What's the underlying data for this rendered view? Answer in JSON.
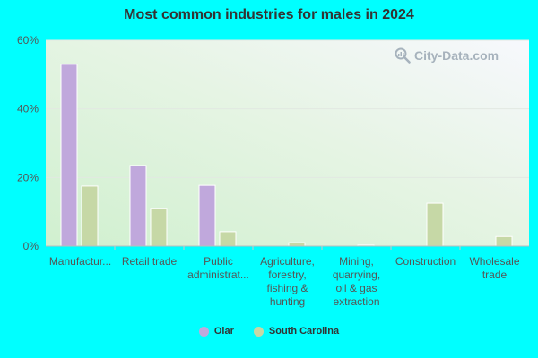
{
  "colors": {
    "series0": "#c0a8dc",
    "series1": "#c6d8a6"
  },
  "watermark": {
    "text": "City-Data.com",
    "icon": "magnifier-chart-icon"
  },
  "chart_data": {
    "type": "bar",
    "title": "Most common industries for males in 2024",
    "xlabel": "",
    "ylabel": "",
    "ylim": [
      0,
      60
    ],
    "ytick_values": [
      0,
      20,
      40,
      60
    ],
    "ytick_labels": [
      "0%",
      "20%",
      "40%",
      "60%"
    ],
    "grid": true,
    "legend_position": "bottom",
    "categories": [
      "Manufactur...",
      "Retail trade",
      "Public administrat...",
      "Agriculture, forestry, fishing & hunting",
      "Mining, quarrying, oil & gas extraction",
      "Construction",
      "Wholesale trade"
    ],
    "category_lines": [
      [
        "Manufactur..."
      ],
      [
        "Retail trade"
      ],
      [
        "Public",
        "administrat..."
      ],
      [
        "Agriculture,",
        "forestry,",
        "fishing &",
        "hunting"
      ],
      [
        "Mining,",
        "quarrying,",
        "oil & gas",
        "extraction"
      ],
      [
        "Construction"
      ],
      [
        "Wholesale",
        "trade"
      ]
    ],
    "series": [
      {
        "name": "Olar",
        "values": [
          53.0,
          23.5,
          17.7,
          0,
          0,
          0,
          0
        ]
      },
      {
        "name": "South Carolina",
        "values": [
          17.5,
          11.0,
          4.2,
          1.0,
          0.3,
          12.5,
          2.8
        ]
      }
    ]
  }
}
